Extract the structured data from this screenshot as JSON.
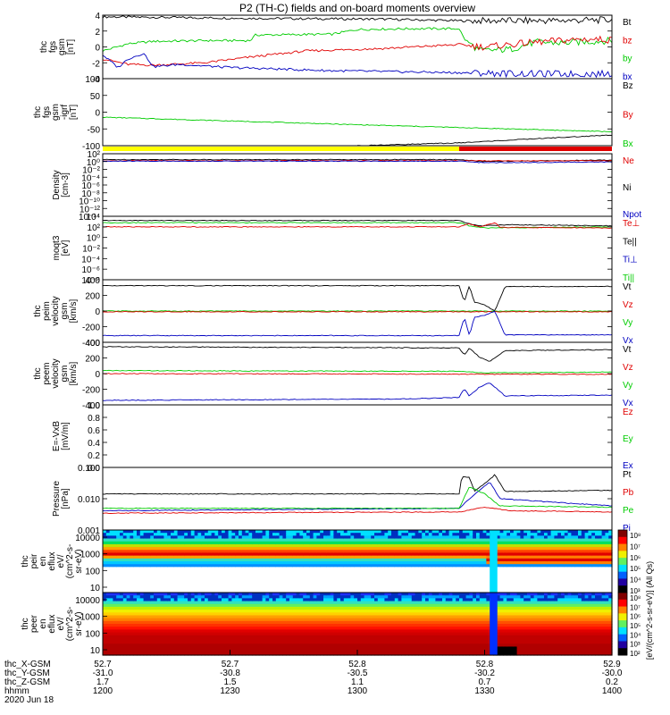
{
  "title": "P2 (TH-C) fields and on-board moments overview",
  "colors": {
    "black": "#000000",
    "red": "#e00000",
    "green": "#00cc00",
    "blue": "#0000c0",
    "yellow": "#ffff00"
  },
  "chart_data": [
    {
      "type": "line",
      "id": "panel1",
      "ylabel": [
        "thc",
        "fgs",
        "gsm",
        "[nT]"
      ],
      "yticks": [
        "4",
        "2",
        "0",
        "-2",
        "-4"
      ],
      "ylim": [
        -4,
        4
      ],
      "legend": [
        {
          "text": "Bt",
          "color": "black"
        },
        {
          "text": "bz",
          "color": "red"
        },
        {
          "text": "by",
          "color": "green"
        },
        {
          "text": "bx",
          "color": "blue"
        }
      ],
      "series": [
        {
          "color": "black",
          "points": [
            [
              0,
              3.8
            ],
            [
              0.3,
              3.6
            ],
            [
              0.55,
              3.5
            ],
            [
              0.7,
              3.3
            ],
            [
              0.85,
              3.3
            ],
            [
              1,
              3.4
            ]
          ]
        },
        {
          "color": "green",
          "points": [
            [
              0,
              -0.5
            ],
            [
              0.05,
              0.4
            ],
            [
              0.1,
              0.7
            ],
            [
              0.2,
              0.8
            ],
            [
              0.29,
              0.8
            ],
            [
              0.3,
              1.5
            ],
            [
              0.45,
              1.6
            ],
            [
              0.5,
              2.2
            ],
            [
              0.6,
              2.3
            ],
            [
              0.7,
              2.3
            ],
            [
              0.71,
              1.0
            ],
            [
              0.74,
              -0.5
            ],
            [
              0.8,
              -0.3
            ],
            [
              0.85,
              0.6
            ],
            [
              0.9,
              0.5
            ],
            [
              1,
              0.8
            ]
          ]
        },
        {
          "color": "red",
          "points": [
            [
              0,
              -1.5
            ],
            [
              0.05,
              -2.2
            ],
            [
              0.1,
              -2.3
            ],
            [
              0.2,
              -2.0
            ],
            [
              0.3,
              -1.2
            ],
            [
              0.4,
              -0.5
            ],
            [
              0.55,
              -0.2
            ],
            [
              0.7,
              0.3
            ],
            [
              0.75,
              0.0
            ],
            [
              0.8,
              0.3
            ],
            [
              0.85,
              0.6
            ],
            [
              0.9,
              0.8
            ],
            [
              0.95,
              1.0
            ],
            [
              1,
              0.9
            ]
          ]
        },
        {
          "color": "blue",
          "points": [
            [
              0,
              -1.0
            ],
            [
              0.03,
              -2.6
            ],
            [
              0.05,
              -1.5
            ],
            [
              0.08,
              -0.8
            ],
            [
              0.1,
              -2.5
            ],
            [
              0.15,
              -2.2
            ],
            [
              0.25,
              -2.6
            ],
            [
              0.35,
              -2.8
            ],
            [
              0.45,
              -3.0
            ],
            [
              0.55,
              -3.1
            ],
            [
              0.65,
              -3.2
            ],
            [
              0.75,
              -3.3
            ],
            [
              0.85,
              -3.4
            ],
            [
              1,
              -3.4
            ]
          ]
        }
      ]
    },
    {
      "type": "line",
      "id": "panel2",
      "ylabel": [
        "thc",
        "fgs",
        "gsm",
        "-igrf",
        "[nT]"
      ],
      "yticks": [
        "100",
        "50",
        "0",
        "-50",
        "-100"
      ],
      "ylim": [
        -130,
        110
      ],
      "legend": [
        {
          "text": "Bz",
          "color": "black"
        },
        {
          "text": "By",
          "color": "red"
        },
        {
          "text": "Bx",
          "color": "green"
        }
      ],
      "series": [
        {
          "color": "green",
          "points": [
            [
              0,
              -28
            ],
            [
              0.5,
              -55
            ],
            [
              1,
              -80
            ]
          ]
        },
        {
          "color": "black",
          "points": [
            [
              0.5,
              -130
            ],
            [
              0.7,
              -120
            ],
            [
              0.85,
              -105
            ],
            [
              1,
              -92
            ]
          ]
        }
      ]
    },
    {
      "type": "line",
      "id": "panel3",
      "log": true,
      "ylabel": [
        "Density",
        "[cm-3]"
      ],
      "yticks": [
        "10²",
        "10⁰",
        "10⁻²",
        "10⁻⁴",
        "10⁻⁶",
        "10⁻⁸",
        "10⁻¹⁰",
        "10⁻¹²",
        "10⁻¹⁴"
      ],
      "ylim": [
        -14,
        2
      ],
      "legend": [
        {
          "text": "Ne",
          "color": "red"
        },
        {
          "text": "Ni",
          "color": "black"
        },
        {
          "text": "Npot",
          "color": "blue"
        }
      ],
      "series": [
        {
          "color": "black",
          "points": [
            [
              0,
              0.5
            ],
            [
              0.7,
              0.5
            ],
            [
              0.75,
              0
            ],
            [
              1,
              0.4
            ]
          ]
        },
        {
          "color": "red",
          "points": [
            [
              0,
              0.2
            ],
            [
              1,
              0.2
            ]
          ]
        },
        {
          "color": "blue",
          "points": [
            [
              0,
              0.1
            ],
            [
              0.7,
              0.1
            ],
            [
              0.75,
              -0.3
            ],
            [
              1,
              -0.1
            ]
          ]
        }
      ]
    },
    {
      "type": "line",
      "id": "panel4",
      "log": true,
      "ylabel": [
        "moqt3",
        "[eV]"
      ],
      "yticks": [
        "10⁴",
        "10²",
        "10⁰",
        "10⁻²",
        "10⁻⁴",
        "10⁻⁶",
        "10⁻⁸"
      ],
      "ylim": [
        -8,
        4
      ],
      "legend": [
        {
          "text": "Te⊥",
          "color": "red"
        },
        {
          "text": "Te||",
          "color": "black"
        },
        {
          "text": "Ti⊥",
          "color": "blue"
        },
        {
          "text": "Ti||",
          "color": "green"
        }
      ],
      "series": [
        {
          "color": "black",
          "points": [
            [
              0,
              3.2
            ],
            [
              0.7,
              3.2
            ],
            [
              0.71,
              2.8
            ],
            [
              0.74,
              2.2
            ],
            [
              0.8,
              2.4
            ],
            [
              1,
              2.2
            ]
          ]
        },
        {
          "color": "green",
          "points": [
            [
              0,
              2.8
            ],
            [
              0.7,
              2.8
            ],
            [
              0.72,
              2.2
            ],
            [
              0.75,
              1.8
            ],
            [
              1,
              2.0
            ]
          ]
        },
        {
          "color": "red",
          "points": [
            [
              0,
              2.0
            ],
            [
              0.7,
              2.0
            ],
            [
              0.72,
              2.6
            ],
            [
              0.74,
              2.0
            ],
            [
              0.77,
              2.8
            ],
            [
              0.78,
              1.9
            ],
            [
              1,
              1.8
            ]
          ]
        }
      ]
    },
    {
      "type": "line",
      "id": "panel5",
      "ylabel": [
        "thc",
        "peim",
        "velocity",
        "gsm",
        "[km/s]"
      ],
      "yticks": [
        "400",
        "200",
        "0",
        "-200",
        "-400"
      ],
      "ylim": [
        -420,
        420
      ],
      "legend": [
        {
          "text": "Vt",
          "color": "black"
        },
        {
          "text": "Vz",
          "color": "red"
        },
        {
          "text": "Vy",
          "color": "green"
        },
        {
          "text": "Vx",
          "color": "blue"
        }
      ],
      "series": [
        {
          "color": "black",
          "points": [
            [
              0,
              340
            ],
            [
              0.7,
              340
            ],
            [
              0.71,
              120
            ],
            [
              0.72,
              340
            ],
            [
              0.73,
              120
            ],
            [
              0.75,
              80
            ],
            [
              0.77,
              0
            ],
            [
              0.79,
              330
            ],
            [
              1,
              330
            ]
          ]
        },
        {
          "color": "green",
          "points": [
            [
              0,
              0
            ],
            [
              1,
              0
            ]
          ]
        },
        {
          "color": "red",
          "points": [
            [
              0,
              -10
            ],
            [
              1,
              -10
            ]
          ]
        },
        {
          "color": "blue",
          "points": [
            [
              0,
              -330
            ],
            [
              0.7,
              -330
            ],
            [
              0.71,
              -80
            ],
            [
              0.72,
              -330
            ],
            [
              0.73,
              -80
            ],
            [
              0.75,
              -60
            ],
            [
              0.77,
              0
            ],
            [
              0.79,
              -320
            ],
            [
              1,
              -320
            ]
          ]
        }
      ]
    },
    {
      "type": "line",
      "id": "panel6",
      "ylabel": [
        "thc",
        "peem",
        "velocity",
        "gsm",
        "[km/s]"
      ],
      "yticks": [
        "400",
        "200",
        "0",
        "-200",
        "-400"
      ],
      "ylim": [
        -420,
        420
      ],
      "legend": [
        {
          "text": "Vt",
          "color": "black"
        },
        {
          "text": "Vz",
          "color": "red"
        },
        {
          "text": "Vy",
          "color": "green"
        },
        {
          "text": "Vx",
          "color": "blue"
        }
      ],
      "series": [
        {
          "color": "black",
          "points": [
            [
              0,
              360
            ],
            [
              0.7,
              345
            ],
            [
              0.71,
              250
            ],
            [
              0.72,
              340
            ],
            [
              0.74,
              220
            ],
            [
              0.76,
              160
            ],
            [
              0.79,
              310
            ],
            [
              1,
              320
            ]
          ]
        },
        {
          "color": "green",
          "points": [
            [
              0,
              40
            ],
            [
              0.7,
              30
            ],
            [
              0.75,
              10
            ],
            [
              1,
              20
            ]
          ]
        },
        {
          "color": "red",
          "points": [
            [
              0,
              0
            ],
            [
              1,
              -10
            ]
          ]
        },
        {
          "color": "blue",
          "points": [
            [
              0,
              -360
            ],
            [
              0.6,
              -340
            ],
            [
              0.7,
              -320
            ],
            [
              0.71,
              -200
            ],
            [
              0.72,
              -300
            ],
            [
              0.74,
              -180
            ],
            [
              0.76,
              -120
            ],
            [
              0.79,
              -300
            ],
            [
              1,
              -290
            ]
          ]
        }
      ]
    },
    {
      "type": "line",
      "id": "panel7",
      "ylabel": [
        "E=-VxB",
        "[mV/m]"
      ],
      "yticks": [
        "1.0",
        "0.8",
        "0.6",
        "0.4",
        "0.2",
        "0.0"
      ],
      "ylim": [
        0,
        1
      ],
      "legend": [
        {
          "text": "Ez",
          "color": "red"
        },
        {
          "text": "Ey",
          "color": "green"
        },
        {
          "text": "Ex",
          "color": "blue"
        }
      ],
      "series": []
    },
    {
      "type": "line",
      "id": "panel8",
      "log": true,
      "ylabel": [
        "Pressure",
        "[nPa]"
      ],
      "yticks": [
        "0.100",
        "0.010",
        "0.001"
      ],
      "ylim": [
        -3,
        -0.4
      ],
      "legend": [
        {
          "text": "Pt",
          "color": "black"
        },
        {
          "text": "Pb",
          "color": "red"
        },
        {
          "text": "Pe",
          "color": "green"
        },
        {
          "text": "Pi",
          "color": "blue"
        }
      ],
      "series": [
        {
          "color": "black",
          "points": [
            [
              0,
              -1.5
            ],
            [
              0.7,
              -1.5
            ],
            [
              0.705,
              -0.8
            ],
            [
              0.72,
              -0.8
            ],
            [
              0.73,
              -1.4
            ],
            [
              0.76,
              -0.9
            ],
            [
              0.77,
              -0.7
            ],
            [
              0.79,
              -1.4
            ],
            [
              1,
              -1.35
            ]
          ]
        },
        {
          "color": "blue",
          "points": [
            [
              0,
              -2.2
            ],
            [
              0.7,
              -2.1
            ],
            [
              0.72,
              -1.7
            ],
            [
              0.76,
              -1.0
            ],
            [
              0.78,
              -1.7
            ],
            [
              1,
              -2.0
            ]
          ]
        },
        {
          "color": "green",
          "points": [
            [
              0,
              -2.1
            ],
            [
              0.7,
              -2.1
            ],
            [
              0.72,
              -1.2
            ],
            [
              0.75,
              -1.5
            ],
            [
              0.78,
              -2.0
            ],
            [
              1,
              -2.05
            ]
          ]
        },
        {
          "color": "red",
          "points": [
            [
              0,
              -2.3
            ],
            [
              0.7,
              -2.25
            ],
            [
              0.75,
              -2.05
            ],
            [
              0.8,
              -2.2
            ],
            [
              1,
              -2.25
            ]
          ]
        }
      ]
    },
    {
      "type": "heatmap",
      "id": "panel9",
      "ylabel": [
        "thc",
        "peir",
        "en",
        "eflux",
        "eV/",
        "(cm^2-s-",
        "sr-eV)"
      ],
      "yticks": [
        "10000",
        "1000",
        "100",
        "10"
      ],
      "colorbar": {
        "ticks": [
          "10⁸",
          "10⁷",
          "10⁶",
          "10⁵",
          "10⁴",
          "10³"
        ],
        "label": "[eV/(cm^2-s-sr-eV)] (All Qs)"
      }
    },
    {
      "type": "heatmap",
      "id": "panel10",
      "ylabel": [
        "thc",
        "peer",
        "en",
        "eflux",
        "eV/",
        "(cm^2-s-",
        "sr-eV)"
      ],
      "yticks": [
        "10000",
        "1000",
        "100",
        "10"
      ],
      "colorbar": {
        "ticks": [
          "10⁸",
          "10⁷",
          "10⁶",
          "10⁵",
          "10⁴",
          "10³",
          "10²"
        ],
        "label": ""
      }
    }
  ],
  "xaxis": {
    "rows": [
      {
        "label": "thc_X-GSM",
        "values": [
          "52.7",
          "52.7",
          "52.8",
          "52.8",
          "52.9"
        ]
      },
      {
        "label": "thc_Y-GSM",
        "values": [
          "-31.0",
          "-30.8",
          "-30.5",
          "-30.2",
          "-30.0"
        ]
      },
      {
        "label": "thc_Z-GSM",
        "values": [
          "1.7",
          "1.5",
          "1.1",
          "0.7",
          "0.2"
        ]
      },
      {
        "label": "hhmm",
        "values": [
          "1200",
          "1230",
          "1300",
          "1330",
          "1400"
        ]
      }
    ],
    "date": "2020 Jun 18"
  },
  "status_bar": {
    "yellow_fraction": 0.7,
    "red_start": 0.7
  }
}
